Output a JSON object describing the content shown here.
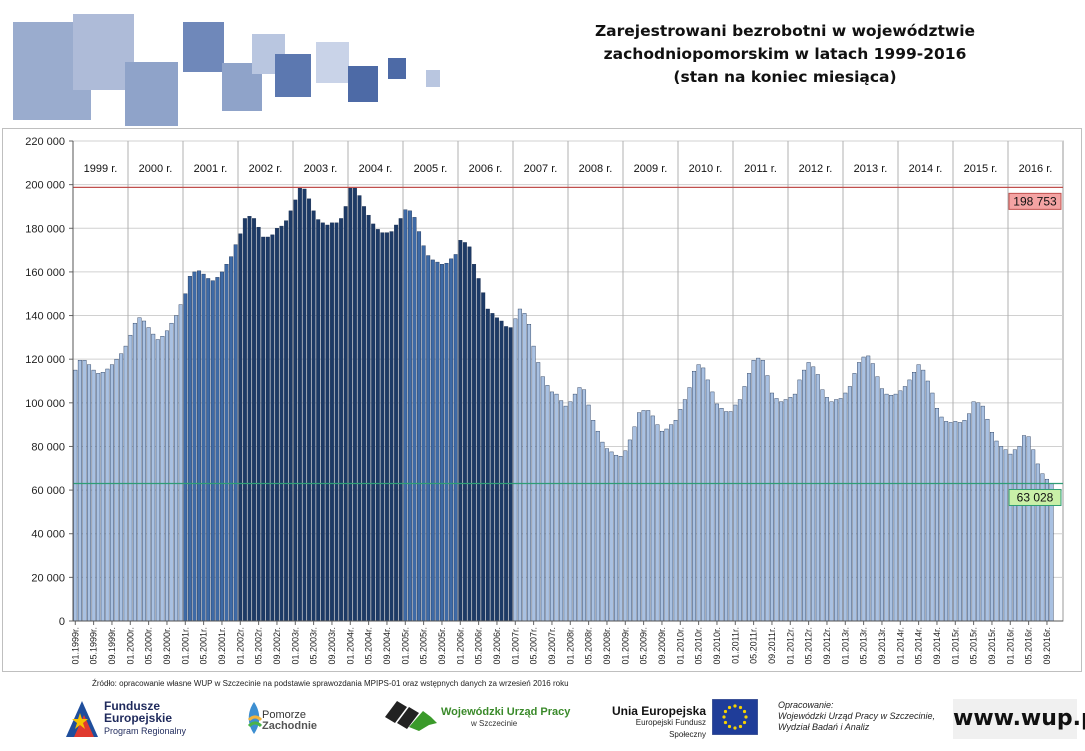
{
  "title_lines": [
    "Zarejestrowani bezrobotni w województwie",
    "zachodniopomorskim w latach 1999-2016",
    "(stan na koniec miesiąca)"
  ],
  "source_note": "Źródło: opracowanie własne WUP w Szczecinie na podstawie sprawozdania MPIPS-01 oraz wstępnych danych za wrzesień 2016 roku",
  "logos": {
    "fe_title1": "Fundusze",
    "fe_title2": "Europejskie",
    "fe_sub": "Program Regionalny",
    "pz_line1": "Pomorze",
    "pz_line2": "Zachodnie",
    "wup_title": "Wojewódzki Urząd Pracy",
    "wup_sub": "w Szczecinie",
    "ue_title": "Unia Europejska",
    "ue_sub": "Europejski Fundusz Społeczny",
    "credit_line1": "Opracowanie:",
    "credit_line2": "Wojewódzki Urząd Pracy w Szczecinie,",
    "credit_line3": "Wydział Badań i Analiz",
    "url": "www.wup.pl"
  },
  "colors": {
    "bar_light": "#a9c1e2",
    "bar_mid": "#3e6aa6",
    "bar_dark": "#1d3a66",
    "bar_stroke": "#1b2f50",
    "max_line": "#c0504d",
    "min_line": "#2e9d75",
    "max_box": "#f4a3a3",
    "min_box": "#c9f0a8"
  },
  "chart_data": {
    "type": "bar",
    "title": "Zarejestrowani bezrobotni w województwie zachodniopomorskim w latach 1999-2016 (stan na koniec miesiąca)",
    "ylim": [
      0,
      220000
    ],
    "yticks": [
      0,
      20000,
      40000,
      60000,
      80000,
      100000,
      120000,
      140000,
      160000,
      180000,
      200000,
      220000
    ],
    "ytick_labels": [
      "0",
      "20 000",
      "40 000",
      "60 000",
      "80 000",
      "100 000",
      "120 000",
      "140 000",
      "160 000",
      "180 000",
      "200 000",
      "220 000"
    ],
    "grid": true,
    "year_labels": [
      "1999 r.",
      "2000 r.",
      "2001 r.",
      "2002 r.",
      "2003 r.",
      "2004 r.",
      "2005 r.",
      "2006 r.",
      "2007 r.",
      "2008 r.",
      "2009 r.",
      "2010 r.",
      "2011 r.",
      "2012 r.",
      "2013 r.",
      "2014 r.",
      "2015 r.",
      "2016 r."
    ],
    "x_tick_labels": [
      "01.1999r.",
      "05.1999r.",
      "09.1999r.",
      "01.2000r.",
      "05.2000r.",
      "09.2000r.",
      "01.2001r.",
      "05.2001r.",
      "09.2001r.",
      "01.2002r.",
      "05.2002r.",
      "09.2002r.",
      "01.2003r.",
      "05.2003r.",
      "09.2003r.",
      "01.2004r.",
      "05.2004r.",
      "09.2004r.",
      "01.2005r.",
      "05.2005r.",
      "09.2005r.",
      "01.2006r.",
      "05.2006r.",
      "09.2006r.",
      "01.2007r.",
      "05.2007r.",
      "09.2007r.",
      "01.2008r.",
      "05.2008r.",
      "09.2008r.",
      "01.2009r.",
      "05.2009r.",
      "09.2009r.",
      "01.2010r.",
      "05.2010r.",
      "09.2010r.",
      "01.2011r.",
      "05.2011r.",
      "09.2011r.",
      "01.2012r.",
      "05.2012r.",
      "09.2012r.",
      "01.2013r.",
      "05.2013r.",
      "09.2013r.",
      "01.2014r.",
      "05.2014r.",
      "09.2014r.",
      "01.2015r.",
      "05.2015r.",
      "09.2015r.",
      "01.2016r.",
      "05.2016r.",
      "09.2016r."
    ],
    "series": [
      {
        "year": "1999 r.",
        "shade": "light",
        "values": [
          115000,
          119500,
          119500,
          117500,
          115000,
          113500,
          114000,
          115500,
          117500,
          120000,
          122500,
          126000
        ]
      },
      {
        "year": "2000 r.",
        "shade": "light",
        "values": [
          131000,
          136500,
          139000,
          137500,
          134500,
          131500,
          129000,
          130500,
          133000,
          136500,
          140000,
          145000
        ]
      },
      {
        "year": "2001 r.",
        "shade": "mid",
        "values": [
          150000,
          158000,
          160000,
          160500,
          159000,
          157000,
          156000,
          157500,
          160000,
          163500,
          167000,
          172500
        ]
      },
      {
        "year": "2002 r.",
        "shade": "dark",
        "values": [
          177500,
          184500,
          185500,
          184500,
          180500,
          176000,
          176000,
          177000,
          180000,
          181000,
          183500,
          188000
        ]
      },
      {
        "year": "2003 r.",
        "shade": "dark",
        "values": [
          193000,
          198500,
          198000,
          193500,
          188000,
          184000,
          182500,
          181500,
          182500,
          182500,
          184500,
          190000
        ]
      },
      {
        "year": "2004 r.",
        "shade": "dark",
        "values": [
          198500,
          198500,
          195000,
          190000,
          186000,
          182000,
          179500,
          178000,
          178000,
          178500,
          181500,
          184500
        ]
      },
      {
        "year": "2005 r.",
        "shade": "mid",
        "values": [
          188500,
          188000,
          185000,
          178500,
          172000,
          167500,
          165500,
          164500,
          163500,
          164000,
          166000,
          168000
        ]
      },
      {
        "year": "2006 r.",
        "shade": "dark",
        "values": [
          174500,
          173500,
          171500,
          163500,
          157000,
          150500,
          143000,
          141000,
          139000,
          137500,
          135000,
          134500
        ]
      },
      {
        "year": "2007 r.",
        "shade": "light",
        "values": [
          138500,
          143000,
          141000,
          136000,
          126000,
          118500,
          112000,
          108000,
          105000,
          104000,
          101000,
          98500
        ]
      },
      {
        "year": "2008 r.",
        "shade": "light",
        "values": [
          100500,
          104000,
          107000,
          106000,
          99000,
          92000,
          87000,
          82000,
          79000,
          77500,
          76000,
          75500
        ]
      },
      {
        "year": "2009 r.",
        "shade": "light",
        "values": [
          78000,
          83000,
          89000,
          95500,
          96500,
          96500,
          94000,
          90000,
          87000,
          88000,
          90000,
          92000
        ]
      },
      {
        "year": "2010 r.",
        "shade": "light",
        "values": [
          97000,
          101500,
          107000,
          114500,
          117500,
          116000,
          110500,
          105000,
          99500,
          97500,
          96000,
          96000
        ]
      },
      {
        "year": "2011 r.",
        "shade": "light",
        "values": [
          99000,
          101500,
          107500,
          113500,
          119500,
          120500,
          119500,
          112500,
          104500,
          102000,
          100500,
          101500
        ]
      },
      {
        "year": "2012 r.",
        "shade": "light",
        "values": [
          102500,
          104000,
          110500,
          115000,
          118500,
          116500,
          113000,
          106000,
          102500,
          100500,
          101500,
          102000
        ]
      },
      {
        "year": "2013 r.",
        "shade": "light",
        "values": [
          104500,
          107500,
          113500,
          118500,
          121000,
          121500,
          118000,
          112000,
          106500,
          104000,
          103500,
          104000
        ]
      },
      {
        "year": "2014 r.",
        "shade": "light",
        "values": [
          105500,
          107500,
          110500,
          114000,
          117500,
          115000,
          110000,
          104500,
          97500,
          93500,
          91500,
          91000
        ]
      },
      {
        "year": "2015 r.",
        "shade": "light",
        "values": [
          91500,
          91000,
          92000,
          95000,
          100500,
          100000,
          98500,
          92500,
          86500,
          82500,
          80000,
          78500
        ]
      },
      {
        "year": "2016 r.",
        "shade": "light",
        "values": [
          76500,
          78500,
          80000,
          85000,
          84500,
          78500,
          72000,
          67500,
          65000,
          63028
        ]
      }
    ],
    "reference_lines": [
      {
        "label": "198 753",
        "value": 198753,
        "kind": "max"
      },
      {
        "label": "63 028",
        "value": 63028,
        "kind": "min"
      }
    ]
  }
}
